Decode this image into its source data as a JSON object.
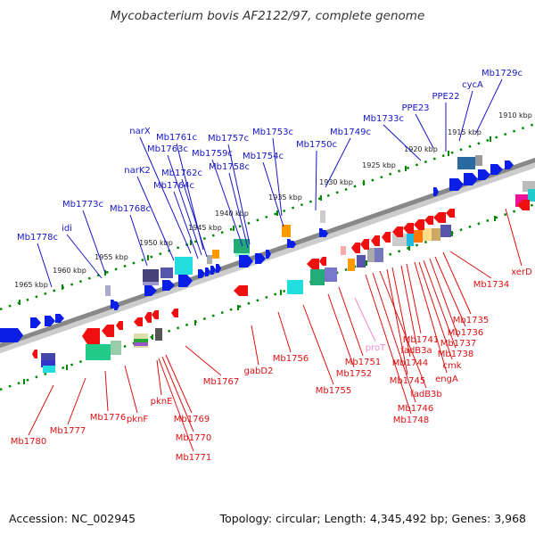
{
  "title": "Mycobacterium bovis AF2122/97, complete genome",
  "footer": {
    "accession": "Accession: NC_002945",
    "summary": "Topology: circular; Length: 4,345,492 bp; Genes: 3,968"
  },
  "colors": {
    "forward_label": "#1515c8",
    "reverse_label": "#dd1010",
    "rna_label": "#ee88cc",
    "backbone": "#888888",
    "tick": "#008800"
  },
  "kbp_ticks": [
    "1910 kbp",
    "1915 kbp",
    "1920 kbp",
    "1925 kbp",
    "1930 kbp",
    "1935 kbp",
    "1940 kbp",
    "1945 kbp",
    "1950 kbp",
    "1955 kbp",
    "1960 kbp",
    "1965 kbp"
  ],
  "forward_genes": [
    "Mb1729c",
    "cycA",
    "PPE22",
    "PPE23",
    "Mb1733c",
    "Mb1749c",
    "Mb1750c",
    "Mb1753c",
    "Mb1754c",
    "Mb1757c",
    "Mb1759c",
    "Mb1758c",
    "Mb1761c",
    "narX",
    "Mb1763c",
    "Mb1762c",
    "Mb1764c",
    "narK2",
    "Mb1768c",
    "Mb1773c",
    "idi",
    "Mb1778c"
  ],
  "reverse_genes": [
    "xerD",
    "Mb1734",
    "Mb1735",
    "Mb1736",
    "Mb1737",
    "Mb1738",
    "engA",
    "cmk",
    "Mb1741",
    "fadB3a",
    "Mb1744",
    "Mb1745",
    "fadB3b",
    "Mb1746",
    "Mb1748",
    "Mb1751",
    "Mb1752",
    "Mb1755",
    "Mb1756",
    "gabD2",
    "Mb1767",
    "Mb1769",
    "Mb1770",
    "Mb1771",
    "pknE",
    "pknF",
    "Mb1776",
    "Mb1777",
    "Mb1780"
  ],
  "rna_genes": [
    "proT"
  ]
}
